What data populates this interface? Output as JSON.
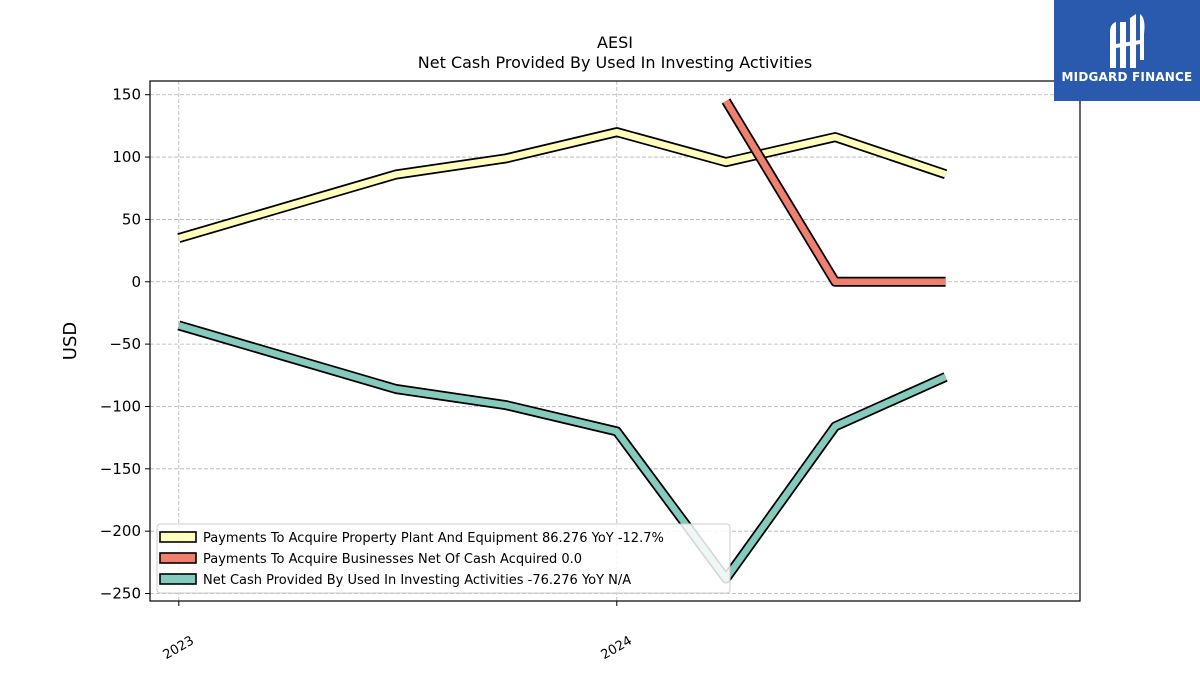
{
  "title": "AESI",
  "subtitle": "Net Cash Provided By Used In Investing Activities",
  "logo": {
    "text": "MIDGARD FINANCE",
    "bg_color": "#2a5aad"
  },
  "chart_data": {
    "type": "line",
    "ylabel": "USD",
    "xlabel": "",
    "ylim": [
      -256,
      161
    ],
    "yticks": [
      150,
      100,
      50,
      0,
      -50,
      -100,
      -150,
      -200,
      -250
    ],
    "ytick_labels": [
      "150",
      "100",
      "50",
      "0",
      "−50",
      "−100",
      "−150",
      "−200",
      "−250"
    ],
    "xlim": [
      "2022-12-08",
      "2025-01-21"
    ],
    "xticks": [
      {
        "date": "2023-01-01",
        "label": "2023"
      },
      {
        "date": "2024-01-01",
        "label": "2024"
      }
    ],
    "grid": true,
    "legend_position": "lower-left",
    "series": [
      {
        "name": "Payments To Acquire Property Plant And Equipment",
        "legend_label": "Payments To Acquire Property Plant And Equipment  86.276 YoY -12.7%",
        "color": "#ffffbb",
        "points": [
          {
            "x": "2023-01-01",
            "y": 35
          },
          {
            "x": "2023-07-01",
            "y": 86
          },
          {
            "x": "2023-10-01",
            "y": 99
          },
          {
            "x": "2024-01-01",
            "y": 120
          },
          {
            "x": "2024-04-01",
            "y": 96
          },
          {
            "x": "2024-07-01",
            "y": 116
          },
          {
            "x": "2024-10-01",
            "y": 86.276
          }
        ]
      },
      {
        "name": "Payments To Acquire Businesses Net Of Cash Acquired",
        "legend_label": "Payments To Acquire Businesses Net Of Cash Acquired  0.0",
        "color": "#f17f6f",
        "points": [
          {
            "x": "2024-04-01",
            "y": 145
          },
          {
            "x": "2024-07-01",
            "y": 0
          },
          {
            "x": "2024-10-01",
            "y": 0
          }
        ]
      },
      {
        "name": "Net Cash Provided By Used In Investing Activities",
        "legend_label": "Net Cash Provided By Used In Investing Activities  -76.276 YoY N/A",
        "color": "#84cbbe",
        "points": [
          {
            "x": "2023-01-01",
            "y": -35
          },
          {
            "x": "2023-07-01",
            "y": -86
          },
          {
            "x": "2023-10-01",
            "y": -99
          },
          {
            "x": "2024-01-01",
            "y": -120
          },
          {
            "x": "2024-04-01",
            "y": -238
          },
          {
            "x": "2024-07-01",
            "y": -116
          },
          {
            "x": "2024-10-01",
            "y": -76.276
          }
        ]
      }
    ]
  }
}
